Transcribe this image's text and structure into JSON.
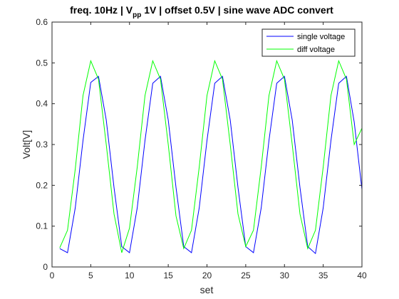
{
  "chart_data": {
    "type": "line",
    "title": {
      "prefix": "freq. 10Hz | V",
      "subscript": "pp",
      "suffix": " 1V | offset 0.5V | sine wave ADC convert"
    },
    "xlabel": "set",
    "ylabel": "Volt[V]",
    "xlim": [
      0,
      40
    ],
    "ylim": [
      0,
      0.6
    ],
    "xticks": [
      0,
      5,
      10,
      15,
      20,
      25,
      30,
      35,
      40
    ],
    "yticks": [
      0,
      0.1,
      0.2,
      0.3,
      0.4,
      0.5,
      0.6
    ],
    "xtick_labels": [
      "0",
      "5",
      "10",
      "15",
      "20",
      "25",
      "30",
      "35",
      "40"
    ],
    "ytick_labels": [
      "0",
      "0.1",
      "0.2",
      "0.3",
      "0.4",
      "0.5",
      "0.6"
    ],
    "grid": false,
    "legend_position": "top-right",
    "x": [
      1,
      2,
      3,
      4,
      5,
      6,
      7,
      8,
      9,
      10,
      11,
      12,
      13,
      14,
      15,
      16,
      17,
      18,
      19,
      20,
      21,
      22,
      23,
      24,
      25,
      26,
      27,
      28,
      29,
      30,
      31,
      32,
      33,
      34,
      35,
      36,
      37,
      38,
      39,
      40
    ],
    "series": [
      {
        "name": "single voltage",
        "color": "#0000ff",
        "values": [
          0.045,
          0.035,
          0.145,
          0.31,
          0.452,
          0.467,
          0.36,
          0.195,
          0.05,
          0.035,
          0.145,
          0.31,
          0.45,
          0.467,
          0.36,
          0.195,
          0.05,
          0.035,
          0.145,
          0.31,
          0.45,
          0.467,
          0.36,
          0.195,
          0.05,
          0.035,
          0.145,
          0.31,
          0.45,
          0.467,
          0.36,
          0.195,
          0.05,
          0.033,
          0.145,
          0.31,
          0.45,
          0.467,
          0.355,
          0.19
        ]
      },
      {
        "name": "diff voltage",
        "color": "#00ff00",
        "values": [
          0.047,
          0.09,
          0.24,
          0.42,
          0.505,
          0.46,
          0.3,
          0.13,
          0.035,
          0.095,
          0.245,
          0.42,
          0.505,
          0.46,
          0.3,
          0.125,
          0.045,
          0.09,
          0.245,
          0.42,
          0.505,
          0.46,
          0.3,
          0.13,
          0.05,
          0.09,
          0.245,
          0.42,
          0.505,
          0.46,
          0.3,
          0.13,
          0.045,
          0.09,
          0.245,
          0.42,
          0.505,
          0.46,
          0.3,
          0.34
        ]
      }
    ]
  }
}
